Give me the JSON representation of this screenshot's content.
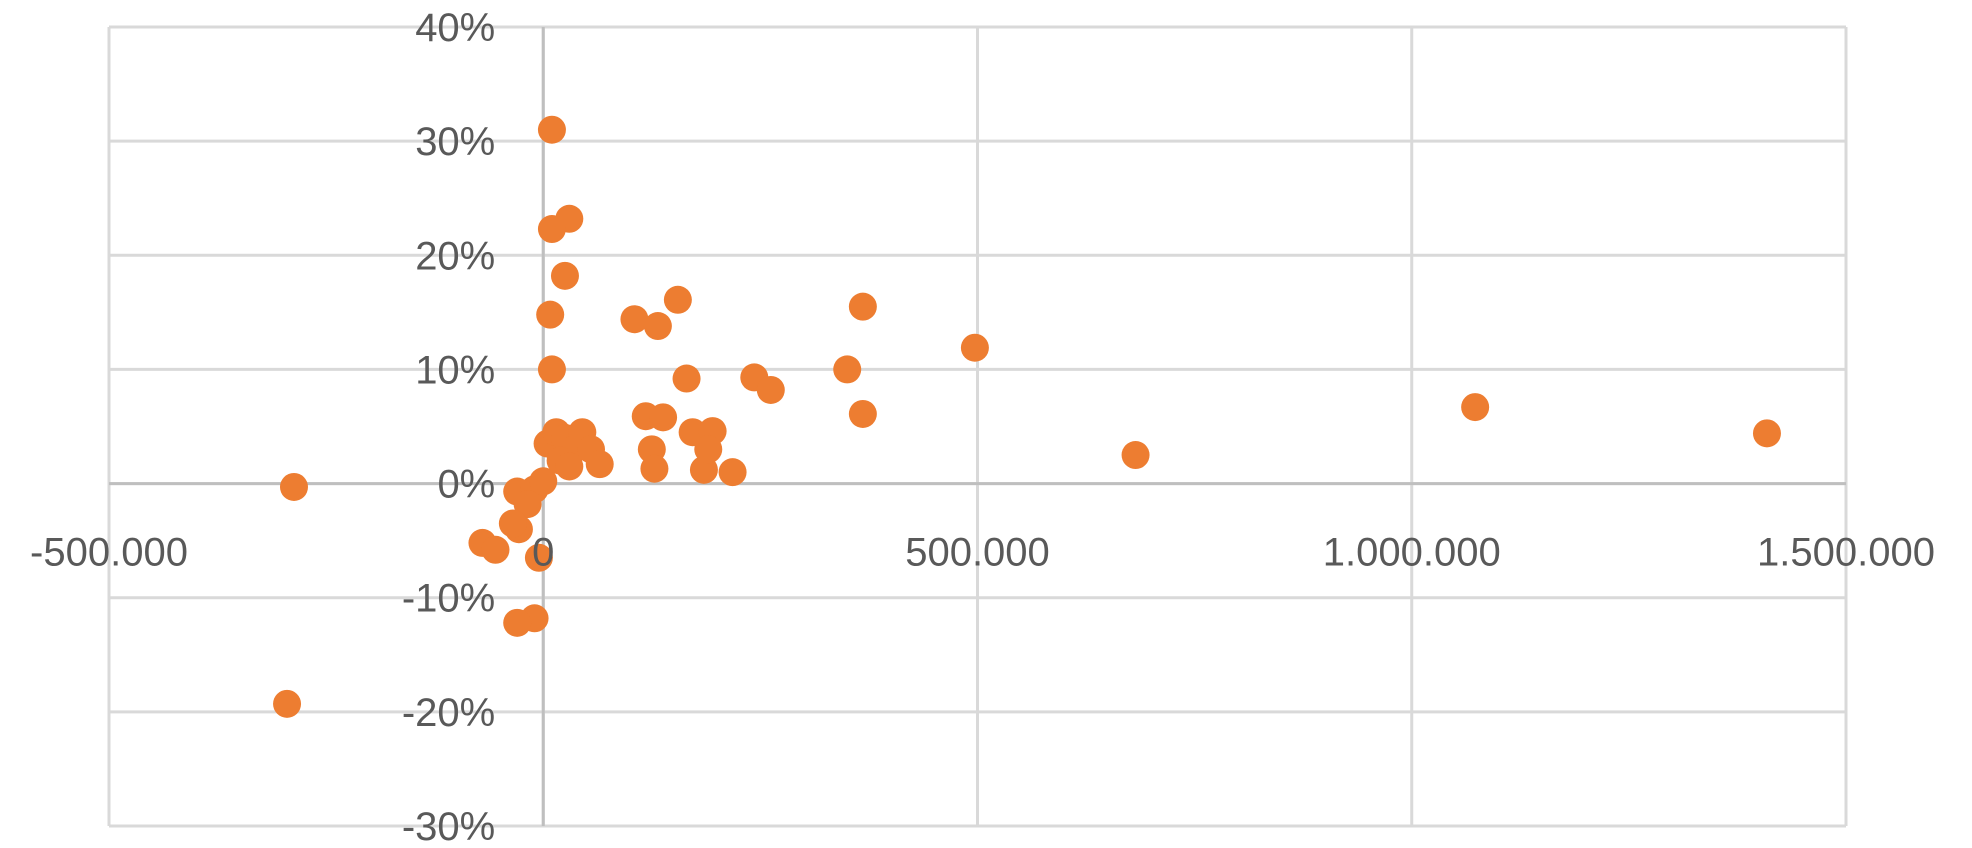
{
  "chart_data": {
    "type": "scatter",
    "title": "",
    "xlabel": "",
    "ylabel": "",
    "xlim": [
      -500000,
      1500000
    ],
    "ylim": [
      -0.3,
      0.4
    ],
    "grid": true,
    "legend": "none",
    "marker_color": "#ED7D31",
    "x_ticks": [
      -500000,
      0,
      500000,
      1000000,
      1500000
    ],
    "x_tick_labels": [
      "-500.000",
      "0",
      "500.000",
      "1.000.000",
      "1.500.000"
    ],
    "y_ticks": [
      -0.3,
      -0.2,
      -0.1,
      0.0,
      0.1,
      0.2,
      0.3,
      0.4
    ],
    "y_tick_labels": [
      "-30%",
      "-20%",
      "-10%",
      "0%",
      "10%",
      "20%",
      "30%",
      "40%"
    ],
    "series": [
      {
        "points": [
          [
            -287000,
            -0.003
          ],
          [
            -295000,
            -0.193
          ],
          [
            10000,
            0.31
          ],
          [
            30000,
            0.232
          ],
          [
            10000,
            0.223
          ],
          [
            25000,
            0.182
          ],
          [
            8000,
            0.148
          ],
          [
            10000,
            0.1
          ],
          [
            105000,
            0.144
          ],
          [
            132000,
            0.138
          ],
          [
            155000,
            0.161
          ],
          [
            165000,
            0.092
          ],
          [
            368000,
            0.155
          ],
          [
            497000,
            0.119
          ],
          [
            350000,
            0.1
          ],
          [
            368000,
            0.061
          ],
          [
            243000,
            0.093
          ],
          [
            262000,
            0.082
          ],
          [
            682000,
            0.025
          ],
          [
            1073000,
            0.067
          ],
          [
            1409000,
            0.044
          ],
          [
            5000,
            0.035
          ],
          [
            15000,
            0.045
          ],
          [
            25000,
            0.04
          ],
          [
            35000,
            0.03
          ],
          [
            45000,
            0.045
          ],
          [
            20000,
            0.02
          ],
          [
            30000,
            0.015
          ],
          [
            55000,
            0.03
          ],
          [
            65000,
            0.017
          ],
          [
            118000,
            0.059
          ],
          [
            125000,
            0.03
          ],
          [
            128000,
            0.013
          ],
          [
            138000,
            0.058
          ],
          [
            172000,
            0.045
          ],
          [
            195000,
            0.046
          ],
          [
            185000,
            0.012
          ],
          [
            190000,
            0.03
          ],
          [
            218000,
            0.01
          ],
          [
            -30000,
            -0.007
          ],
          [
            -10000,
            -0.005
          ],
          [
            0,
            0.002
          ],
          [
            -18000,
            -0.018
          ],
          [
            -28000,
            -0.04
          ],
          [
            -35000,
            -0.035
          ],
          [
            -70000,
            -0.052
          ],
          [
            -55000,
            -0.058
          ],
          [
            -5000,
            -0.065
          ],
          [
            -10000,
            -0.118
          ],
          [
            -30000,
            -0.122
          ]
        ]
      }
    ]
  }
}
